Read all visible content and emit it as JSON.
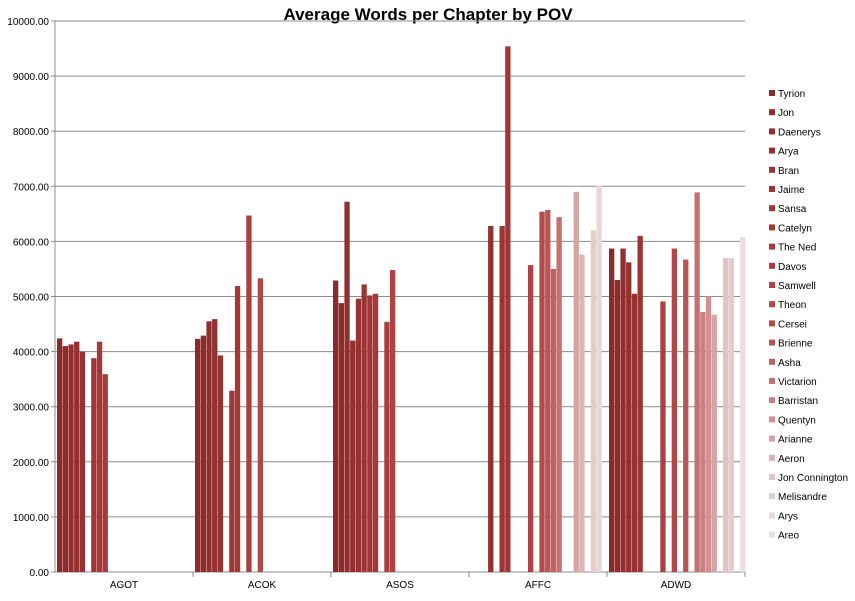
{
  "chart_data": {
    "type": "bar",
    "title": "Average Words per Chapter by POV",
    "xlabel": "",
    "ylabel": "",
    "ylim": [
      0,
      10000
    ],
    "ytick_labels": [
      "0.00",
      "1000.00",
      "2000.00",
      "3000.00",
      "4000.00",
      "5000.00",
      "6000.00",
      "7000.00",
      "8000.00",
      "9000.00",
      "10000.00"
    ],
    "categories": [
      "AGOT",
      "ACOK",
      "ASOS",
      "AFFC",
      "ADWD"
    ],
    "grid": true,
    "legend_position": "right",
    "series": [
      {
        "name": "Tyrion",
        "color": "#8b2a2a",
        "values": [
          4240,
          4230,
          5290,
          null,
          5870
        ]
      },
      {
        "name": "Jon",
        "color": "#8e2c2c",
        "values": [
          4100,
          4290,
          4880,
          null,
          5300
        ]
      },
      {
        "name": "Daenerys",
        "color": "#922e2e",
        "values": [
          4130,
          4550,
          6720,
          null,
          5870
        ]
      },
      {
        "name": "Arya",
        "color": "#953030",
        "values": [
          4180,
          4590,
          4200,
          6280,
          5620
        ]
      },
      {
        "name": "Bran",
        "color": "#983232",
        "values": [
          4000,
          3930,
          4960,
          null,
          5050
        ]
      },
      {
        "name": "Jaime",
        "color": "#9c3434",
        "values": [
          null,
          null,
          5220,
          6280,
          6100
        ]
      },
      {
        "name": "Sansa",
        "color": "#a03636",
        "values": [
          3880,
          3290,
          5020,
          9540,
          null
        ]
      },
      {
        "name": "Catelyn",
        "color": "#a43838",
        "values": [
          4180,
          5190,
          5050,
          null,
          null
        ]
      },
      {
        "name": "The Ned",
        "color": "#a83a3a",
        "values": [
          3590,
          null,
          null,
          null,
          null
        ]
      },
      {
        "name": "Davos",
        "color": "#ad3e3e",
        "values": [
          null,
          6470,
          4540,
          null,
          4910
        ]
      },
      {
        "name": "Samwell",
        "color": "#b04242",
        "values": [
          null,
          null,
          5480,
          5570,
          null
        ]
      },
      {
        "name": "Theon",
        "color": "#b34646",
        "values": [
          null,
          5330,
          null,
          null,
          5870
        ]
      },
      {
        "name": "Cersei",
        "color": "#b54a4a",
        "values": [
          null,
          null,
          null,
          6540,
          null
        ]
      },
      {
        "name": "Brienne",
        "color": "#ba5555",
        "values": [
          null,
          null,
          null,
          6570,
          5670
        ]
      },
      {
        "name": "Asha",
        "color": "#c16262",
        "values": [
          null,
          null,
          null,
          5500,
          null
        ]
      },
      {
        "name": "Victarion",
        "color": "#c77070",
        "values": [
          null,
          null,
          null,
          6440,
          6890
        ]
      },
      {
        "name": "Barristan",
        "color": "#cd8080",
        "values": [
          null,
          null,
          null,
          null,
          4720
        ]
      },
      {
        "name": "Quentyn",
        "color": "#d29090",
        "values": [
          null,
          null,
          null,
          null,
          5000
        ]
      },
      {
        "name": "Arianne",
        "color": "#d7a3a3",
        "values": [
          null,
          null,
          null,
          6900,
          4670
        ]
      },
      {
        "name": "Aeron",
        "color": "#ddb4b4",
        "values": [
          null,
          null,
          null,
          5760,
          null
        ]
      },
      {
        "name": "Jon Connington",
        "color": "#e2c2c2",
        "values": [
          null,
          null,
          null,
          null,
          5700
        ]
      },
      {
        "name": "Melisandre",
        "color": "#e6cbcb",
        "values": [
          null,
          null,
          null,
          6200,
          5700
        ]
      },
      {
        "name": "Arys",
        "color": "#ebd6d6",
        "values": [
          null,
          null,
          null,
          7010,
          null
        ]
      },
      {
        "name": "Areo",
        "color": "#efdcdc",
        "values": [
          null,
          null,
          null,
          null,
          6080
        ]
      }
    ]
  }
}
